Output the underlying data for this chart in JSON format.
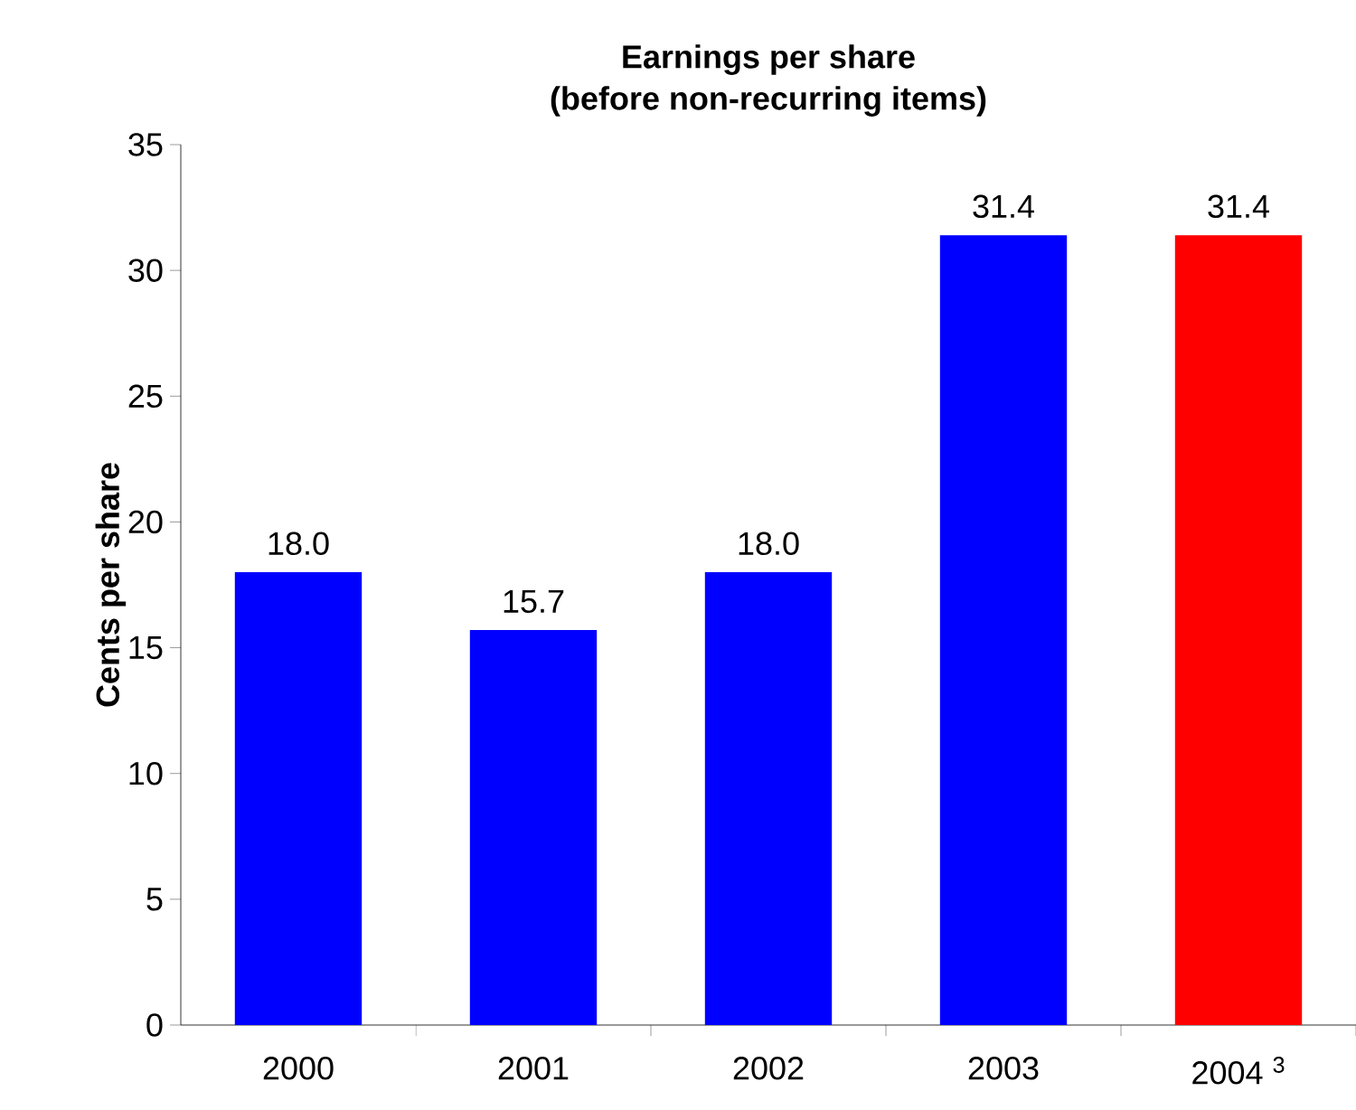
{
  "chart_data": {
    "type": "bar",
    "title": "Earnings per share",
    "subtitle": "(before non-recurring items)",
    "ylabel": "Cents per share",
    "categories": [
      "2000",
      "2001",
      "2002",
      "2003",
      "2004 $^{3}$"
    ],
    "values": [
      18.0,
      15.7,
      18.0,
      31.4,
      31.4
    ],
    "colors": [
      "#0000ff",
      "#0000ff",
      "#0000ff",
      "#0000ff",
      "#ff0000"
    ],
    "value_labels": [
      "18.0",
      "15.7",
      "18.0",
      "31.4",
      "31.4"
    ],
    "ylim": [
      0,
      35
    ],
    "yticks": [
      0,
      5,
      10,
      15,
      20,
      25,
      30,
      35
    ]
  }
}
